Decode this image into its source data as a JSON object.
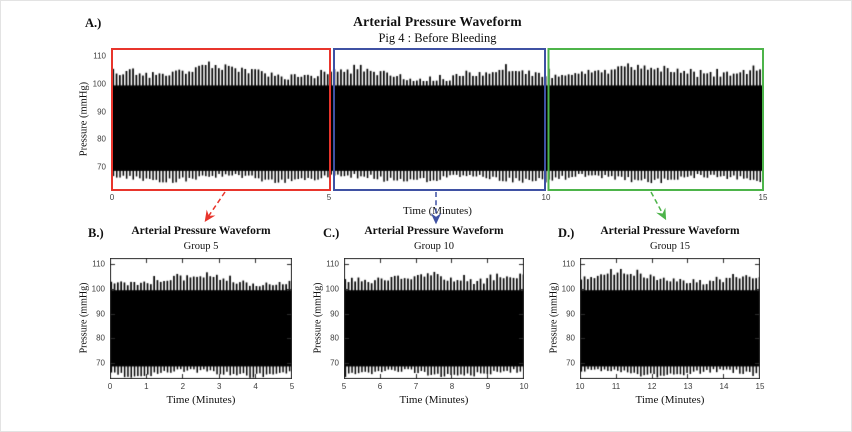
{
  "figure": {
    "background": "#ffffff",
    "description": "MATLAB-style figure with one full arterial pressure trace and three zoomed segments"
  },
  "colors": {
    "segment_red": "#e8352c",
    "segment_blue": "#3f51a3",
    "segment_green": "#4db44a",
    "waveform": "#000000",
    "axis": "#2b2b2b",
    "tick_text": "#3e3e3e"
  },
  "panels": {
    "a": {
      "label": "A.)",
      "title": "Arterial Pressure Waveform",
      "subtitle": "Pig 4 : Before Bleeding",
      "xlabel": "Time (Minutes)",
      "ylabel": "Pressure (mmHg)"
    },
    "b": {
      "label": "B.)",
      "title": "Arterial Pressure Waveform",
      "subtitle": "Group 5",
      "xlabel": "Time (Minutes)",
      "ylabel": "Pressure (mmHg)"
    },
    "c": {
      "label": "C.)",
      "title": "Arterial Pressure Waveform",
      "subtitle": "Group 10",
      "xlabel": "Time (Minutes)",
      "ylabel": "Pressure (mmHg)"
    },
    "d": {
      "label": "D.)",
      "title": "Arterial Pressure Waveform",
      "subtitle": "Group 15",
      "xlabel": "Time (Minutes)",
      "ylabel": "Pressure (mmHg)"
    }
  },
  "chart_data": [
    {
      "type": "line",
      "panel": "A",
      "title": "Arterial Pressure Waveform",
      "subtitle": "Pig 4 : Before Bleeding",
      "xlabel": "Time (Minutes)",
      "ylabel": "Pressure (mmHg)",
      "x_range": [
        0,
        15
      ],
      "xticks": [
        0,
        5,
        10,
        15
      ],
      "yticks": [
        70,
        80,
        90,
        100,
        110
      ],
      "ylim_displayed": [
        62,
        112.5
      ],
      "signal_summary": {
        "description": "continuous high-frequency arterial pulse train rendered as a dense black band",
        "systolic_peak_range_mmHg": [
          101,
          108
        ],
        "diastolic_trough_range_mmHg": [
          63.2,
          67.5
        ],
        "solid_band_mmHg": [
          68.6,
          99.4
        ]
      },
      "highlighted_segments": [
        {
          "x_start": 0,
          "x_end": 5,
          "color": "#e8352c",
          "zoom_panel": "B"
        },
        {
          "x_start": 5,
          "x_end": 10,
          "color": "#3f51a3",
          "zoom_panel": "C"
        },
        {
          "x_start": 10,
          "x_end": 15,
          "color": "#4db44a",
          "zoom_panel": "D"
        }
      ]
    },
    {
      "type": "line",
      "panel": "B",
      "title": "Arterial Pressure Waveform",
      "subtitle": "Group 5",
      "xlabel": "Time (Minutes)",
      "ylabel": "Pressure (mmHg)",
      "x_range": [
        0,
        5
      ],
      "xticks": [
        0,
        1,
        2,
        3,
        4,
        5
      ],
      "yticks": [
        70,
        80,
        90,
        100,
        110
      ],
      "ylim_displayed": [
        63.5,
        112.5
      ],
      "signal_summary": {
        "description": "zoom of minutes 0-5 of panel A",
        "systolic_peak_range_mmHg": [
          101,
          108
        ],
        "diastolic_trough_range_mmHg": [
          64,
          67.5
        ],
        "solid_band_mmHg": [
          68.6,
          99.4
        ]
      }
    },
    {
      "type": "line",
      "panel": "C",
      "title": "Arterial Pressure Waveform",
      "subtitle": "Group 10",
      "xlabel": "Time (Minutes)",
      "ylabel": "Pressure (mmHg)",
      "x_range": [
        5,
        10
      ],
      "xticks": [
        5,
        6,
        7,
        8,
        9,
        10
      ],
      "yticks": [
        70,
        80,
        90,
        100,
        110
      ],
      "ylim_displayed": [
        63.5,
        112.5
      ],
      "signal_summary": {
        "description": "zoom of minutes 5-10 of panel A",
        "systolic_peak_range_mmHg": [
          101,
          108
        ],
        "diastolic_trough_range_mmHg": [
          64,
          67.5
        ],
        "solid_band_mmHg": [
          68.6,
          99.4
        ]
      }
    },
    {
      "type": "line",
      "panel": "D",
      "title": "Arterial Pressure Waveform",
      "subtitle": "Group 15",
      "xlabel": "Time (Minutes)",
      "ylabel": "Pressure (mmHg)",
      "x_range": [
        10,
        15
      ],
      "xticks": [
        10,
        11,
        12,
        13,
        14,
        15
      ],
      "yticks": [
        70,
        80,
        90,
        100,
        110
      ],
      "ylim_displayed": [
        63.5,
        112.5
      ],
      "signal_summary": {
        "description": "zoom of minutes 10-15 of panel A",
        "systolic_peak_range_mmHg": [
          101,
          108
        ],
        "diastolic_trough_range_mmHg": [
          64,
          67.5
        ],
        "solid_band_mmHg": [
          68.6,
          99.4
        ]
      }
    }
  ]
}
